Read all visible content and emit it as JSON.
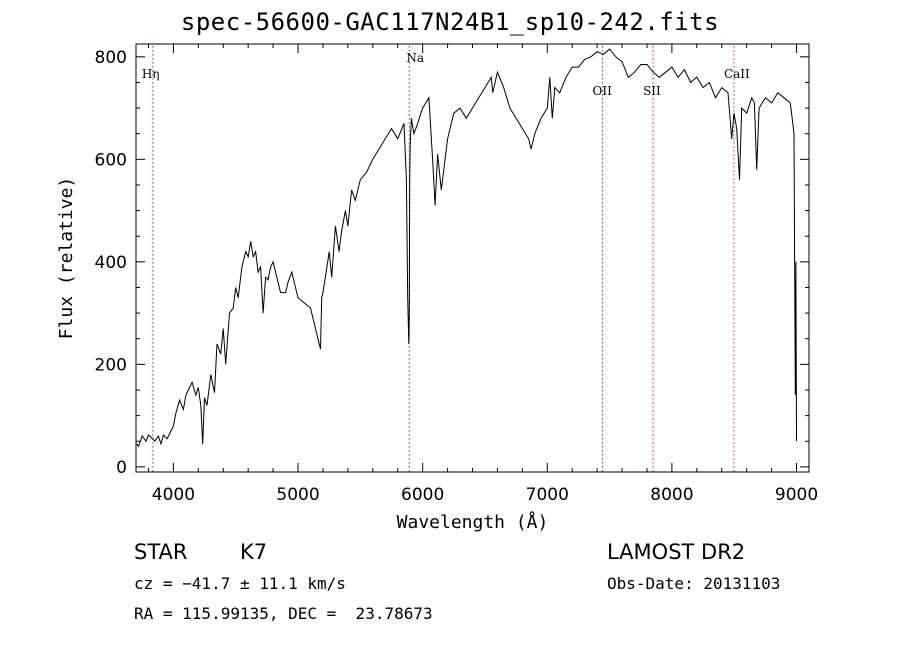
{
  "chart_data": {
    "type": "line",
    "title": "spec-56600-GAC117N24B1_sp10-242.fits",
    "xlabel": "Wavelength (Å)",
    "ylabel": "Flux (relative)",
    "xlim": [
      3700,
      9100
    ],
    "ylim": [
      -10,
      825
    ],
    "xticks": [
      4000,
      5000,
      6000,
      7000,
      8000,
      9000
    ],
    "yticks": [
      0,
      200,
      400,
      600,
      800
    ],
    "grid": false,
    "line_color": "#000000",
    "marker_color": "#b03030",
    "lines": [
      {
        "label": "Hη",
        "x": 3835
      },
      {
        "label": "Na",
        "x": 5893
      },
      {
        "label": "OII",
        "x": 7443
      },
      {
        "label": "SII",
        "x": 7849
      },
      {
        "label": "CaII",
        "x": 8498
      }
    ],
    "series": [
      {
        "x": [
          3705,
          3720,
          3750,
          3780,
          3800,
          3820,
          3850,
          3880,
          3900,
          3920,
          3950,
          3980,
          4000,
          4020,
          4050,
          4080,
          4100,
          4120,
          4150,
          4180,
          4200,
          4220,
          4235,
          4250,
          4270,
          4300,
          4330,
          4350,
          4380,
          4400,
          4420,
          4450,
          4480,
          4500,
          4520,
          4550,
          4580,
          4600,
          4620,
          4640,
          4660,
          4680,
          4700,
          4720,
          4740,
          4760,
          4780,
          4800,
          4830,
          4860,
          4900,
          4920,
          4950,
          4980,
          5000,
          5050,
          5100,
          5150,
          5180,
          5190,
          5200,
          5220,
          5250,
          5270,
          5300,
          5330,
          5350,
          5380,
          5400,
          5430,
          5460,
          5500,
          5550,
          5600,
          5650,
          5700,
          5750,
          5800,
          5850,
          5870,
          5880,
          5889,
          5893,
          5896,
          5900,
          5910,
          5930,
          5960,
          6000,
          6050,
          6080,
          6100,
          6120,
          6150,
          6200,
          6250,
          6300,
          6350,
          6400,
          6450,
          6500,
          6550,
          6563,
          6600,
          6650,
          6700,
          6750,
          6800,
          6850,
          6870,
          6900,
          6950,
          7000,
          7020,
          7040,
          7060,
          7100,
          7150,
          7200,
          7250,
          7300,
          7350,
          7400,
          7450,
          7500,
          7550,
          7600,
          7650,
          7700,
          7750,
          7800,
          7850,
          7900,
          7950,
          8000,
          8050,
          8100,
          8150,
          8200,
          8250,
          8300,
          8350,
          8400,
          8450,
          8480,
          8498,
          8520,
          8542,
          8560,
          8600,
          8640,
          8662,
          8680,
          8700,
          8750,
          8800,
          8850,
          8900,
          8950,
          8980,
          8990,
          8995,
          9000
        ],
        "y": [
          45,
          40,
          60,
          50,
          62,
          58,
          50,
          60,
          45,
          62,
          55,
          70,
          80,
          105,
          130,
          112,
          140,
          150,
          165,
          140,
          155,
          120,
          45,
          135,
          120,
          180,
          145,
          240,
          220,
          270,
          200,
          300,
          310,
          350,
          330,
          390,
          420,
          410,
          440,
          410,
          420,
          380,
          390,
          300,
          370,
          365,
          390,
          400,
          370,
          340,
          340,
          360,
          380,
          350,
          330,
          320,
          310,
          260,
          230,
          330,
          340,
          370,
          420,
          370,
          470,
          420,
          460,
          500,
          470,
          540,
          520,
          560,
          575,
          600,
          620,
          640,
          660,
          640,
          670,
          560,
          330,
          240,
          300,
          560,
          630,
          680,
          650,
          670,
          700,
          720,
          600,
          510,
          610,
          540,
          640,
          690,
          700,
          680,
          700,
          720,
          740,
          760,
          730,
          770,
          740,
          700,
          680,
          660,
          640,
          620,
          650,
          680,
          700,
          760,
          680,
          740,
          730,
          760,
          780,
          780,
          795,
          800,
          810,
          805,
          815,
          800,
          790,
          760,
          770,
          785,
          785,
          770,
          760,
          770,
          780,
          760,
          775,
          750,
          760,
          740,
          750,
          720,
          740,
          730,
          640,
          690,
          660,
          560,
          700,
          690,
          720,
          710,
          580,
          700,
          720,
          710,
          730,
          720,
          710,
          650,
          140,
          400,
          50
        ]
      }
    ]
  },
  "footer": {
    "object_class": "STAR",
    "subclass": "K7",
    "redshift_text": "cz = −41.7 ± 11.1 km/s",
    "coords_text": "RA = 115.99135, DEC =  23.78673",
    "survey": "LAMOST DR2",
    "obs_date": "Obs-Date: 20131103"
  }
}
